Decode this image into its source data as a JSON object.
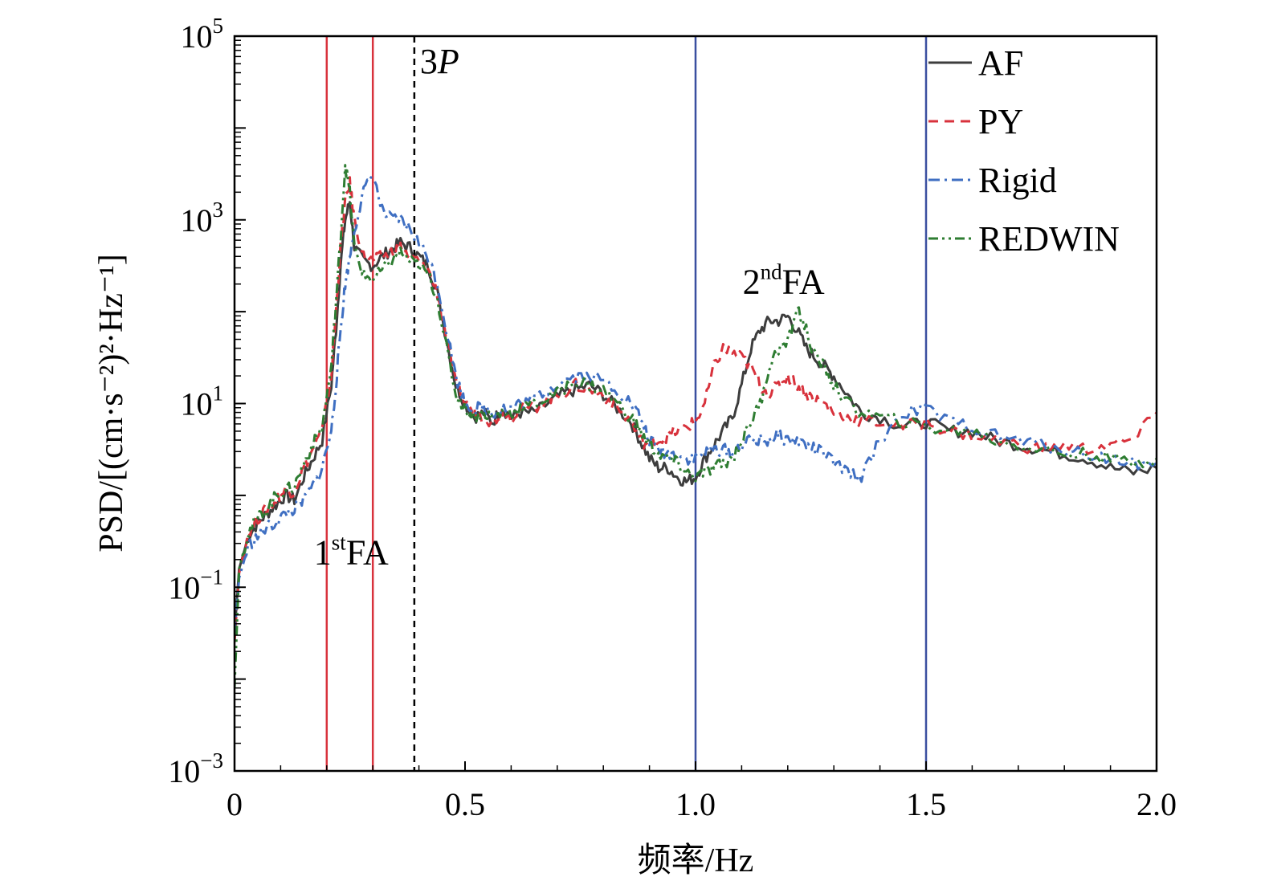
{
  "chart_data": {
    "type": "line",
    "xlabel": "频率/Hz",
    "ylabel": "PSD/[(cm·s⁻²)²·Hz⁻¹]",
    "xlim": [
      0,
      2.0
    ],
    "ylim_log10": [
      -3,
      5
    ],
    "y_scale": "log",
    "x_ticks": [
      "0",
      "0.5",
      "1.0",
      "1.5",
      "2.0"
    ],
    "y_ticks": [
      {
        "base": "10",
        "exp": "5"
      },
      {
        "base": "10",
        "exp": "3"
      },
      {
        "base": "10",
        "exp": "1"
      },
      {
        "base": "10",
        "exp": "−1"
      },
      {
        "base": "10",
        "exp": "−3"
      }
    ],
    "grid": false,
    "legend_position": "top-right",
    "vertical_lines": [
      {
        "x": 0.2,
        "color": "#d8323c",
        "style": "solid"
      },
      {
        "x": 0.3,
        "color": "#d8323c",
        "style": "solid"
      },
      {
        "x": 0.39,
        "color": "#000000",
        "style": "dashed"
      },
      {
        "x": 1.0,
        "color": "#3a4fa0",
        "style": "solid"
      },
      {
        "x": 1.5,
        "color": "#3a4fa0",
        "style": "solid"
      }
    ],
    "annotations": [
      {
        "key": "first_fa",
        "main": "1",
        "sup": "st",
        "rest": "FA",
        "x": 0.2,
        "log10_y": -0.75
      },
      {
        "key": "second_fa",
        "main": "2",
        "sup": "nd",
        "rest": "FA",
        "x": 1.13,
        "log10_y": 2.2
      },
      {
        "key": "three_p",
        "main": "3",
        "italic": "P",
        "x": 0.43,
        "log10_y": 4.6
      }
    ],
    "series": [
      {
        "name": "AF",
        "color": "#3d3d3d",
        "dash": "",
        "width": 3,
        "x": [
          0,
          0.01,
          0.03,
          0.05,
          0.07,
          0.09,
          0.11,
          0.13,
          0.15,
          0.17,
          0.19,
          0.21,
          0.22,
          0.23,
          0.24,
          0.25,
          0.26,
          0.28,
          0.3,
          0.32,
          0.34,
          0.36,
          0.38,
          0.4,
          0.42,
          0.44,
          0.46,
          0.48,
          0.5,
          0.52,
          0.54,
          0.56,
          0.58,
          0.6,
          0.62,
          0.65,
          0.68,
          0.71,
          0.74,
          0.77,
          0.8,
          0.83,
          0.86,
          0.88,
          0.9,
          0.92,
          0.94,
          0.96,
          0.98,
          1.0,
          1.02,
          1.04,
          1.06,
          1.08,
          1.1,
          1.12,
          1.14,
          1.16,
          1.18,
          1.2,
          1.22,
          1.24,
          1.26,
          1.28,
          1.3,
          1.33,
          1.36,
          1.4,
          1.45,
          1.5,
          1.55,
          1.6,
          1.65,
          1.7,
          1.75,
          1.8,
          1.85,
          1.9,
          1.95,
          2.0
        ],
        "log10_y": [
          -1.5,
          -0.8,
          -0.45,
          -0.3,
          -0.2,
          -0.1,
          0.0,
          -0.05,
          0.2,
          0.4,
          0.6,
          1.2,
          1.8,
          2.5,
          3.0,
          3.2,
          2.7,
          2.55,
          2.5,
          2.6,
          2.68,
          2.75,
          2.7,
          2.6,
          2.5,
          2.2,
          1.7,
          1.2,
          1.0,
          0.85,
          0.9,
          0.8,
          0.95,
          0.85,
          0.9,
          0.9,
          1.0,
          1.1,
          1.15,
          1.2,
          1.1,
          0.95,
          0.8,
          0.6,
          0.4,
          0.3,
          0.3,
          0.2,
          0.15,
          0.2,
          0.4,
          0.55,
          0.7,
          0.85,
          1.2,
          1.6,
          1.8,
          1.9,
          1.9,
          1.95,
          1.8,
          1.6,
          1.5,
          1.4,
          1.3,
          1.1,
          0.9,
          0.85,
          0.75,
          0.8,
          0.7,
          0.7,
          0.6,
          0.55,
          0.5,
          0.45,
          0.4,
          0.3,
          0.25,
          0.3
        ]
      },
      {
        "name": "PY",
        "color": "#d8323c",
        "dash": "12 8",
        "width": 3,
        "x": [
          0,
          0.01,
          0.03,
          0.05,
          0.07,
          0.09,
          0.11,
          0.13,
          0.15,
          0.17,
          0.19,
          0.21,
          0.22,
          0.23,
          0.24,
          0.25,
          0.26,
          0.28,
          0.3,
          0.32,
          0.34,
          0.36,
          0.38,
          0.4,
          0.42,
          0.44,
          0.46,
          0.48,
          0.5,
          0.52,
          0.54,
          0.56,
          0.58,
          0.6,
          0.62,
          0.65,
          0.68,
          0.71,
          0.74,
          0.77,
          0.8,
          0.83,
          0.86,
          0.88,
          0.9,
          0.92,
          0.94,
          0.96,
          0.98,
          1.0,
          1.02,
          1.04,
          1.06,
          1.08,
          1.1,
          1.12,
          1.14,
          1.16,
          1.18,
          1.2,
          1.22,
          1.24,
          1.26,
          1.28,
          1.3,
          1.33,
          1.36,
          1.4,
          1.45,
          1.5,
          1.55,
          1.6,
          1.65,
          1.7,
          1.75,
          1.8,
          1.85,
          1.9,
          1.95,
          2.0
        ],
        "log10_y": [
          -1.6,
          -0.85,
          -0.4,
          -0.25,
          -0.15,
          -0.05,
          0.05,
          0.05,
          0.3,
          0.5,
          0.7,
          1.3,
          2.0,
          2.7,
          3.2,
          3.4,
          3.0,
          2.6,
          2.55,
          2.6,
          2.65,
          2.7,
          2.6,
          2.55,
          2.45,
          2.2,
          1.7,
          1.2,
          1.0,
          0.9,
          0.85,
          0.8,
          0.9,
          0.85,
          0.95,
          0.95,
          1.05,
          1.1,
          1.2,
          1.15,
          1.1,
          0.95,
          0.8,
          0.6,
          0.55,
          0.6,
          0.65,
          0.7,
          0.75,
          0.8,
          1.0,
          1.4,
          1.6,
          1.55,
          1.5,
          1.4,
          1.2,
          1.1,
          1.2,
          1.3,
          1.2,
          1.1,
          1.05,
          1.0,
          0.9,
          0.85,
          0.8,
          0.8,
          0.75,
          0.8,
          0.7,
          0.65,
          0.6,
          0.55,
          0.5,
          0.55,
          0.5,
          0.55,
          0.6,
          0.9
        ]
      },
      {
        "name": "Rigid",
        "color": "#3f6fc2",
        "dash": "14 6 3 6",
        "width": 3,
        "x": [
          0,
          0.01,
          0.03,
          0.05,
          0.07,
          0.09,
          0.11,
          0.13,
          0.15,
          0.17,
          0.19,
          0.21,
          0.22,
          0.23,
          0.24,
          0.25,
          0.26,
          0.28,
          0.3,
          0.32,
          0.34,
          0.36,
          0.38,
          0.4,
          0.42,
          0.44,
          0.46,
          0.48,
          0.5,
          0.52,
          0.54,
          0.56,
          0.58,
          0.6,
          0.62,
          0.65,
          0.68,
          0.71,
          0.74,
          0.77,
          0.8,
          0.83,
          0.86,
          0.88,
          0.9,
          0.92,
          0.94,
          0.96,
          0.98,
          1.0,
          1.02,
          1.04,
          1.06,
          1.08,
          1.1,
          1.12,
          1.14,
          1.16,
          1.18,
          1.2,
          1.22,
          1.24,
          1.26,
          1.28,
          1.3,
          1.33,
          1.36,
          1.4,
          1.45,
          1.5,
          1.55,
          1.6,
          1.65,
          1.7,
          1.75,
          1.8,
          1.85,
          1.9,
          1.95,
          2.0
        ],
        "log10_y": [
          -1.5,
          -0.9,
          -0.55,
          -0.45,
          -0.35,
          -0.3,
          -0.2,
          -0.15,
          -0.05,
          0.1,
          0.3,
          0.7,
          1.2,
          1.8,
          2.3,
          2.6,
          2.9,
          3.3,
          3.5,
          3.1,
          3.0,
          3.0,
          2.9,
          2.75,
          2.6,
          2.3,
          1.8,
          1.3,
          1.0,
          0.95,
          0.95,
          0.9,
          0.95,
          0.95,
          1.0,
          1.05,
          1.15,
          1.25,
          1.3,
          1.3,
          1.25,
          1.15,
          1.0,
          0.85,
          0.6,
          0.5,
          0.45,
          0.45,
          0.4,
          0.4,
          0.45,
          0.5,
          0.5,
          0.45,
          0.55,
          0.6,
          0.6,
          0.6,
          0.65,
          0.6,
          0.6,
          0.55,
          0.5,
          0.45,
          0.35,
          0.25,
          0.2,
          0.6,
          0.9,
          0.95,
          0.8,
          0.75,
          0.65,
          0.6,
          0.55,
          0.5,
          0.45,
          0.4,
          0.35,
          0.35
        ]
      },
      {
        "name": "REDWIN",
        "color": "#2e7d32",
        "dash": "12 5 3 5 3 5",
        "width": 3,
        "x": [
          0,
          0.01,
          0.03,
          0.05,
          0.07,
          0.09,
          0.11,
          0.13,
          0.15,
          0.17,
          0.19,
          0.21,
          0.22,
          0.23,
          0.24,
          0.25,
          0.26,
          0.28,
          0.3,
          0.32,
          0.34,
          0.36,
          0.38,
          0.4,
          0.42,
          0.44,
          0.46,
          0.48,
          0.5,
          0.52,
          0.54,
          0.56,
          0.58,
          0.6,
          0.62,
          0.65,
          0.68,
          0.71,
          0.74,
          0.77,
          0.8,
          0.83,
          0.86,
          0.88,
          0.9,
          0.92,
          0.94,
          0.96,
          0.98,
          1.0,
          1.02,
          1.04,
          1.06,
          1.08,
          1.1,
          1.12,
          1.14,
          1.16,
          1.18,
          1.2,
          1.22,
          1.24,
          1.26,
          1.28,
          1.3,
          1.33,
          1.36,
          1.4,
          1.45,
          1.5,
          1.55,
          1.6,
          1.65,
          1.7,
          1.75,
          1.8,
          1.85,
          1.9,
          1.95,
          2.0
        ],
        "log10_y": [
          -2.1,
          -0.8,
          -0.4,
          -0.25,
          -0.15,
          0.0,
          0.05,
          0.1,
          0.35,
          0.55,
          0.75,
          1.4,
          2.1,
          2.8,
          3.6,
          3.3,
          2.7,
          2.4,
          2.35,
          2.45,
          2.55,
          2.65,
          2.55,
          2.5,
          2.4,
          2.15,
          1.6,
          1.1,
          0.95,
          0.85,
          0.9,
          0.85,
          0.9,
          0.9,
          0.95,
          1.0,
          1.05,
          1.15,
          1.25,
          1.2,
          1.15,
          1.0,
          0.85,
          0.7,
          0.55,
          0.45,
          0.4,
          0.35,
          0.25,
          0.2,
          0.25,
          0.3,
          0.35,
          0.4,
          0.6,
          0.8,
          1.0,
          1.4,
          1.6,
          1.65,
          2.05,
          1.8,
          1.5,
          1.4,
          1.2,
          1.0,
          0.9,
          0.85,
          0.8,
          0.75,
          0.7,
          0.7,
          0.6,
          0.55,
          0.5,
          0.45,
          0.45,
          0.4,
          0.35,
          0.4
        ]
      }
    ]
  }
}
